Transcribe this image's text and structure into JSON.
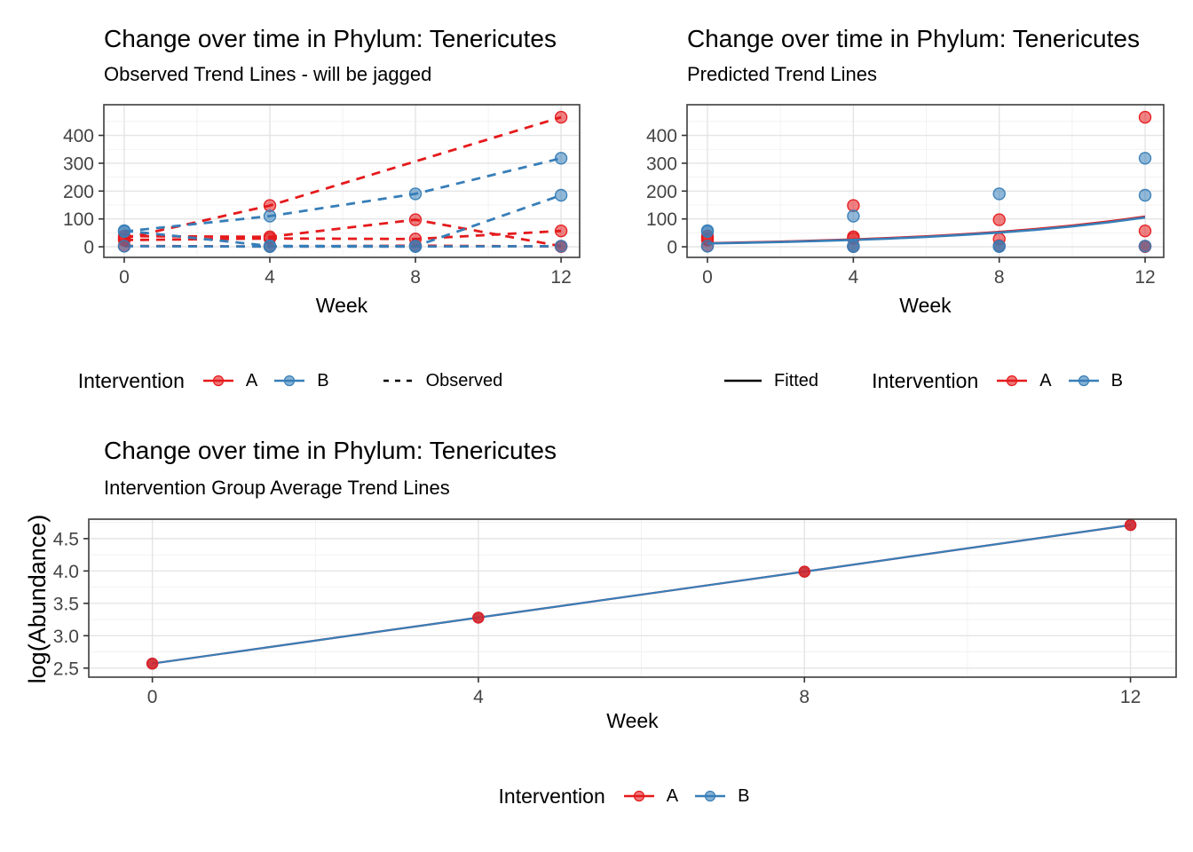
{
  "colors": {
    "A": "#E41A1C",
    "B": "#377EB8",
    "axis_text": "#444444",
    "tick": "#333333",
    "panel_border": "#3C3C3C",
    "grid_major": "#E4E4E4",
    "grid_minor": "#EFEFEF",
    "linetype_key": "#000000"
  },
  "chart_data": [
    {
      "type": "line",
      "title": "Change over time in Phylum: Tenericutes",
      "subtitle": "Observed Trend Lines - will be jagged",
      "xlabel": "Week",
      "ylabel": "",
      "xticks": [
        0,
        4,
        8,
        12
      ],
      "yticks": [
        0,
        100,
        200,
        300,
        400
      ],
      "xlim": [
        -0.56,
        12.51
      ],
      "ylim": [
        -38,
        510
      ],
      "grid": true,
      "legend_position": "bottom",
      "series": [
        {
          "name": "A-subject-1",
          "color": "A",
          "dash": true,
          "x": [
            0,
            4,
            12
          ],
          "y": [
            30,
            148,
            465
          ]
        },
        {
          "name": "A-subject-2",
          "color": "A",
          "dash": true,
          "x": [
            0,
            4,
            8,
            12
          ],
          "y": [
            38,
            36,
            97,
            2
          ]
        },
        {
          "name": "A-subject-3",
          "color": "A",
          "dash": true,
          "x": [
            0,
            4,
            8,
            12
          ],
          "y": [
            24,
            30,
            28,
            57
          ]
        },
        {
          "name": "A-subject-4",
          "color": "A",
          "dash": true,
          "x": [
            0,
            4,
            8,
            12
          ],
          "y": [
            3,
            1,
            4,
            1
          ]
        },
        {
          "name": "B-subject-1",
          "color": "B",
          "dash": true,
          "x": [
            0,
            4,
            8,
            12
          ],
          "y": [
            55,
            110,
            190,
            318
          ]
        },
        {
          "name": "B-subject-2",
          "color": "B",
          "dash": true,
          "x": [
            0,
            4,
            8,
            12
          ],
          "y": [
            58,
            3,
            2,
            185
          ]
        },
        {
          "name": "B-subject-3",
          "color": "B",
          "dash": true,
          "x": [
            0,
            4,
            8,
            12
          ],
          "y": [
            2,
            1,
            1,
            2
          ]
        }
      ],
      "legend": {
        "title": "Intervention",
        "entries": [
          {
            "label": "A",
            "color": "A"
          },
          {
            "label": "B",
            "color": "B"
          }
        ],
        "linetype": {
          "label": "Observed",
          "dash": true
        }
      }
    },
    {
      "type": "scatter-with-fit",
      "title": "Change over time in Phylum: Tenericutes",
      "subtitle": "Predicted Trend Lines",
      "xlabel": "Week",
      "ylabel": "",
      "xticks": [
        0,
        4,
        8,
        12
      ],
      "yticks": [
        0,
        100,
        200,
        300,
        400
      ],
      "xlim": [
        -0.56,
        12.51
      ],
      "ylim": [
        -38,
        510
      ],
      "grid": true,
      "points_under": true,
      "legend_position": "bottom",
      "series": [
        {
          "name": "A-points-1",
          "color": "A",
          "line": false,
          "x": [
            0,
            4,
            12
          ],
          "y": [
            30,
            148,
            465
          ]
        },
        {
          "name": "A-points-2",
          "color": "A",
          "line": false,
          "x": [
            0,
            4,
            8,
            12
          ],
          "y": [
            38,
            36,
            97,
            2
          ]
        },
        {
          "name": "A-points-3",
          "color": "A",
          "line": false,
          "x": [
            0,
            4,
            8,
            12
          ],
          "y": [
            24,
            30,
            28,
            57
          ]
        },
        {
          "name": "A-points-4",
          "color": "A",
          "line": false,
          "x": [
            0,
            4,
            8,
            12
          ],
          "y": [
            3,
            1,
            4,
            1
          ]
        },
        {
          "name": "B-points-1",
          "color": "B",
          "line": false,
          "x": [
            0,
            4,
            8,
            12
          ],
          "y": [
            55,
            110,
            190,
            318
          ]
        },
        {
          "name": "B-points-2",
          "color": "B",
          "line": false,
          "x": [
            0,
            4,
            8,
            12
          ],
          "y": [
            58,
            3,
            2,
            185
          ]
        },
        {
          "name": "B-points-3",
          "color": "B",
          "line": false,
          "x": [
            0,
            4,
            8,
            12
          ],
          "y": [
            2,
            1,
            1,
            2
          ]
        },
        {
          "name": "fitted-A",
          "color": "A",
          "points": false,
          "w": 2.6,
          "x": [
            0,
            1,
            2,
            3,
            4,
            5,
            6,
            7,
            8,
            9,
            10,
            11,
            12
          ],
          "y": [
            13.0,
            15.5,
            18.5,
            22.1,
            26.4,
            31.4,
            37.5,
            44.8,
            53.4,
            63.7,
            76.0,
            90.7,
            108.2
          ]
        },
        {
          "name": "fitted-B",
          "color": "B",
          "points": false,
          "w": 2.6,
          "x": [
            0,
            1,
            2,
            3,
            4,
            5,
            6,
            7,
            8,
            9,
            10,
            11,
            12
          ],
          "y": [
            12.0,
            14.4,
            17.2,
            20.7,
            24.7,
            29.6,
            35.5,
            42.6,
            51.0,
            61.1,
            73.3,
            87.8,
            105.2
          ]
        }
      ],
      "legend": {
        "title": "Intervention",
        "entries": [
          {
            "label": "A",
            "color": "A"
          },
          {
            "label": "B",
            "color": "B"
          }
        ],
        "linetype": {
          "label": "Fitted",
          "dash": false
        }
      }
    },
    {
      "type": "line",
      "title": "Change over time in Phylum: Tenericutes",
      "subtitle": "Intervention Group Average Trend Lines",
      "xlabel": "Week",
      "ylabel": "log(Abundance)",
      "xticks": [
        0,
        4,
        8,
        12
      ],
      "yticks": [
        2.5,
        3.0,
        3.5,
        4.0,
        4.5
      ],
      "ytickfmt": "1dp",
      "xlim": [
        -0.78,
        12.56
      ],
      "ylim": [
        2.36,
        4.8
      ],
      "grid": true,
      "legend_position": "bottom",
      "series": [
        {
          "name": "average-B-points",
          "color": "B",
          "line": false,
          "r": 6,
          "fo": 0.6,
          "x": [
            0,
            4,
            8,
            12
          ],
          "y": [
            2.57,
            3.28,
            3.99,
            4.71
          ]
        },
        {
          "name": "average-A",
          "color": "A",
          "w": 2.2,
          "r": 6,
          "fo": 0.8,
          "x": [
            0,
            4,
            8,
            12
          ],
          "y": [
            2.57,
            3.28,
            3.99,
            4.71
          ]
        },
        {
          "name": "average-B-line",
          "color": "B",
          "points": false,
          "w": 2.2,
          "x": [
            0,
            4,
            8,
            12
          ],
          "y": [
            2.57,
            3.28,
            3.99,
            4.71
          ]
        }
      ],
      "legend": {
        "title": "Intervention",
        "entries": [
          {
            "label": "A",
            "color": "A"
          },
          {
            "label": "B",
            "color": "B"
          }
        ]
      }
    }
  ]
}
